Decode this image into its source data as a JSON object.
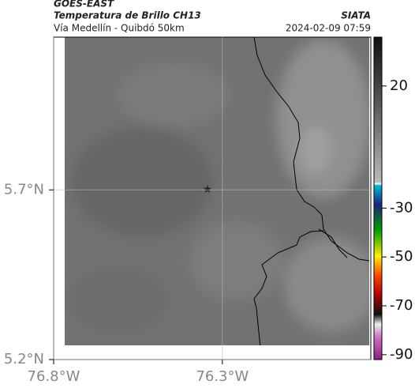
{
  "header": {
    "source": "GOES-EAST",
    "title": "Temperatura de Brillo CH13",
    "org": "SIATA",
    "subtitle": "Vía Medellín - Quibdó 50km",
    "timestamp": "2024-02-09 07:59"
  },
  "map": {
    "xlim": [
      -76.8,
      -75.86
    ],
    "ylim": [
      5.2,
      6.15
    ],
    "xticks": [
      {
        "value": -76.8,
        "label": "76.8°W"
      },
      {
        "value": -76.3,
        "label": "76.3°W"
      }
    ],
    "yticks": [
      {
        "value": 5.7,
        "label": "5.7°N"
      },
      {
        "value": 5.2,
        "label": "5.2°N"
      }
    ]
  },
  "colorbar": {
    "range": [
      -92,
      40
    ],
    "ticks": [
      20,
      -30,
      -50,
      -70,
      -90
    ]
  }
}
